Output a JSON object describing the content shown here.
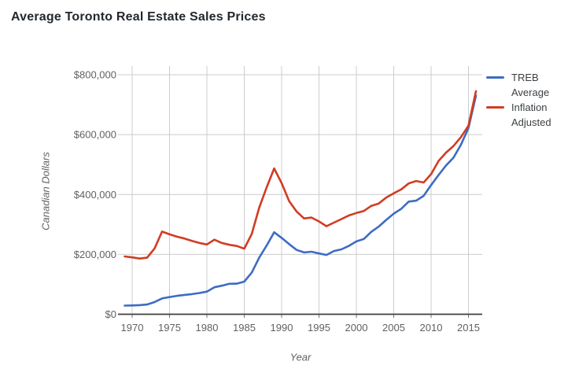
{
  "title": "Average Toronto Real Estate Sales Prices",
  "chart_data": {
    "type": "line",
    "title": "Average Toronto Real Estate Sales Prices",
    "xlabel": "Year",
    "ylabel": "Canadian Dollars",
    "xlim": [
      1969,
      2016
    ],
    "ylim": [
      0,
      800000
    ],
    "grid": true,
    "legend_position": "right",
    "x_ticks": [
      1970,
      1975,
      1980,
      1985,
      1990,
      1995,
      2000,
      2005,
      2010,
      2015
    ],
    "y_ticks": [
      0,
      200000,
      400000,
      600000,
      800000
    ],
    "y_tick_labels": [
      "$0",
      "$200,000",
      "$400,000",
      "$600,000",
      "$800,000"
    ],
    "colors": {
      "grid": "#cccccc",
      "axis": "#3f3f3f",
      "tick_text": "#616161"
    },
    "x": [
      1969,
      1970,
      1971,
      1972,
      1973,
      1974,
      1975,
      1976,
      1977,
      1978,
      1979,
      1980,
      1981,
      1982,
      1983,
      1984,
      1985,
      1986,
      1987,
      1988,
      1989,
      1990,
      1991,
      1992,
      1993,
      1994,
      1995,
      1996,
      1997,
      1998,
      1999,
      2000,
      2001,
      2002,
      2003,
      2004,
      2005,
      2006,
      2007,
      2008,
      2009,
      2010,
      2011,
      2012,
      2013,
      2014,
      2015,
      2016
    ],
    "series": [
      {
        "name": "TREB Average",
        "color": "#3d6cc3",
        "values": [
          28929,
          29429,
          30426,
          32513,
          40605,
          52806,
          57581,
          61389,
          64559,
          67333,
          70830,
          75694,
          90203,
          95496,
          101626,
          102318,
          109094,
          138925,
          189105,
          229635,
          273698,
          255020,
          234313,
          214971,
          206490,
          208921,
          203028,
          198150,
          211307,
          216815,
          228372,
          243255,
          251508,
          275231,
          293067,
          315231,
          335907,
          351941,
          376236,
          379347,
          395460,
          431276,
          465014,
          497130,
          522958,
          566611,
          622116,
          729922
        ]
      },
      {
        "name": "Inflation Adjusted",
        "color": "#d23c22",
        "values": [
          193000,
          190000,
          186000,
          189000,
          220000,
          276000,
          267000,
          259000,
          253000,
          245000,
          238000,
          233000,
          249000,
          238000,
          232000,
          228000,
          219000,
          268000,
          356000,
          424000,
          487000,
          438000,
          378000,
          343000,
          320000,
          323000,
          310000,
          294000,
          306000,
          318000,
          330000,
          338000,
          345000,
          362000,
          370000,
          390000,
          404000,
          417000,
          437000,
          445000,
          440000,
          468000,
          512000,
          540000,
          562000,
          592000,
          630000,
          745000
        ]
      }
    ]
  }
}
